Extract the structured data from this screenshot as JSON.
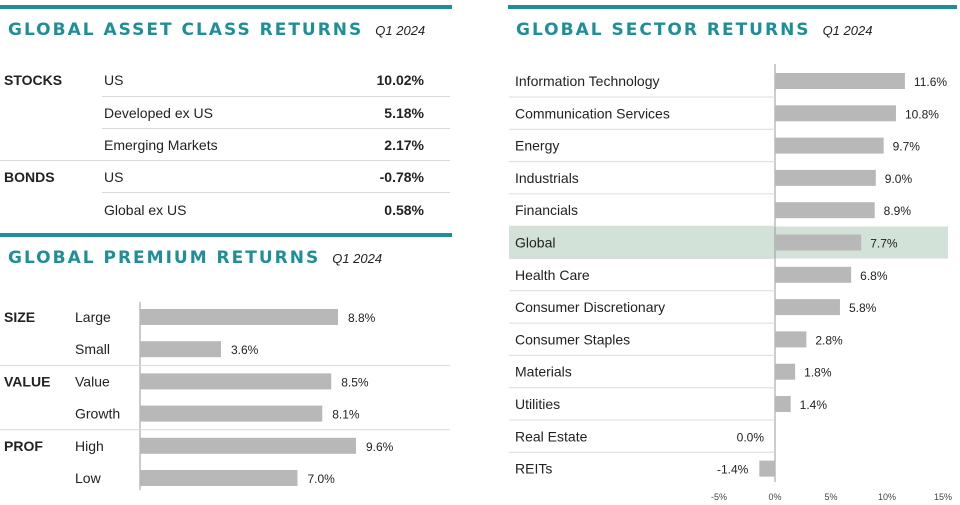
{
  "asset_panel": {
    "title": "GLOBAL ASSET CLASS RETURNS",
    "period": "Q1 2024",
    "rows": [
      {
        "group": "STOCKS",
        "label": "US",
        "value": "10.02%"
      },
      {
        "group": "",
        "label": "Developed ex US",
        "value": "5.18%"
      },
      {
        "group": "",
        "label": "Emerging Markets",
        "value": "2.17%"
      },
      {
        "group": "BONDS",
        "label": "US",
        "value": "-0.78%"
      },
      {
        "group": "",
        "label": "Global ex US",
        "value": "0.58%"
      }
    ]
  },
  "premium_panel": {
    "title": "GLOBAL PREMIUM RETURNS",
    "period": "Q1 2024"
  },
  "sector_panel": {
    "title": "GLOBAL SECTOR RETURNS",
    "period": "Q1 2024"
  },
  "colors": {
    "accent": "#1f8f97",
    "bar": "#b8b8b8",
    "highlight": "#d3e2d8"
  },
  "chart_data": [
    {
      "type": "bar",
      "orientation": "horizontal",
      "title": "GLOBAL PREMIUM RETURNS",
      "subtitle": "Q1 2024",
      "categories": [
        "Large",
        "Small",
        "Value",
        "Growth",
        "High",
        "Low"
      ],
      "groups": [
        "SIZE",
        "",
        "VALUE",
        "",
        "PROF",
        ""
      ],
      "values": [
        8.8,
        3.6,
        8.5,
        8.1,
        9.6,
        7.0
      ],
      "labels": [
        "8.8%",
        "3.6%",
        "8.5%",
        "8.1%",
        "9.6%",
        "7.0%"
      ],
      "xlim": [
        0,
        10
      ]
    },
    {
      "type": "bar",
      "orientation": "horizontal",
      "title": "GLOBAL SECTOR RETURNS",
      "subtitle": "Q1 2024",
      "categories": [
        "Information Technology",
        "Communication Services",
        "Energy",
        "Industrials",
        "Financials",
        "Global",
        "Health Care",
        "Consumer Discretionary",
        "Consumer Staples",
        "Materials",
        "Utilities",
        "Real Estate",
        "REITs"
      ],
      "values": [
        11.6,
        10.8,
        9.7,
        9.0,
        8.9,
        7.7,
        6.8,
        5.8,
        2.8,
        1.8,
        1.4,
        0.0,
        -1.4
      ],
      "labels": [
        "11.6%",
        "10.8%",
        "9.7%",
        "9.0%",
        "8.9%",
        "7.7%",
        "6.8%",
        "5.8%",
        "2.8%",
        "1.8%",
        "1.4%",
        "0.0%",
        "-1.4%"
      ],
      "highlight": "Global",
      "xlim": [
        -5,
        15
      ],
      "x_ticks": [
        "-5%",
        "0%",
        "5%",
        "10%",
        "15%"
      ]
    }
  ]
}
